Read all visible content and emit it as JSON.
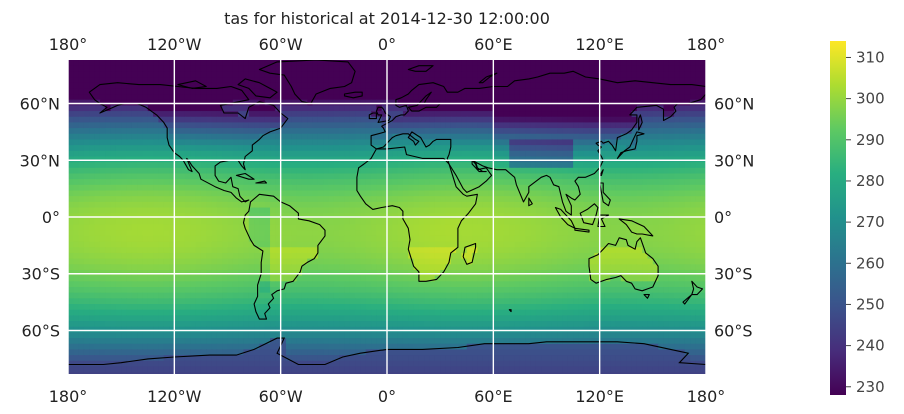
{
  "title": "tas for historical at 2014-12-30 12:00:00",
  "map": {
    "projection": "PlateCarree",
    "lon_ticks": [
      -180,
      -120,
      -60,
      0,
      60,
      120,
      180
    ],
    "lat_ticks": [
      60,
      30,
      0,
      -30,
      -60
    ],
    "lon_tick_labels": [
      "180°",
      "120°W",
      "60°W",
      "0°",
      "60°E",
      "120°E",
      "180°"
    ],
    "lat_tick_labels": [
      "60°N",
      "30°N",
      "0°",
      "30°S",
      "60°S"
    ],
    "gridlines": true,
    "coastlines": true,
    "colormap": "viridis"
  },
  "colorbar": {
    "range": [
      228,
      314
    ],
    "ticks": [
      230,
      240,
      250,
      260,
      270,
      280,
      290,
      300,
      310
    ],
    "tick_labels": [
      "230",
      "240",
      "250",
      "260",
      "270",
      "280",
      "290",
      "300",
      "310"
    ],
    "orientation": "vertical"
  },
  "colors": {
    "gridline": "#ffffff",
    "coastline": "#000000",
    "viridis": [
      "#440154",
      "#472d7b",
      "#3b528b",
      "#2c728e",
      "#21918c",
      "#28ae80",
      "#5ec962",
      "#addc30",
      "#fde725"
    ]
  }
}
